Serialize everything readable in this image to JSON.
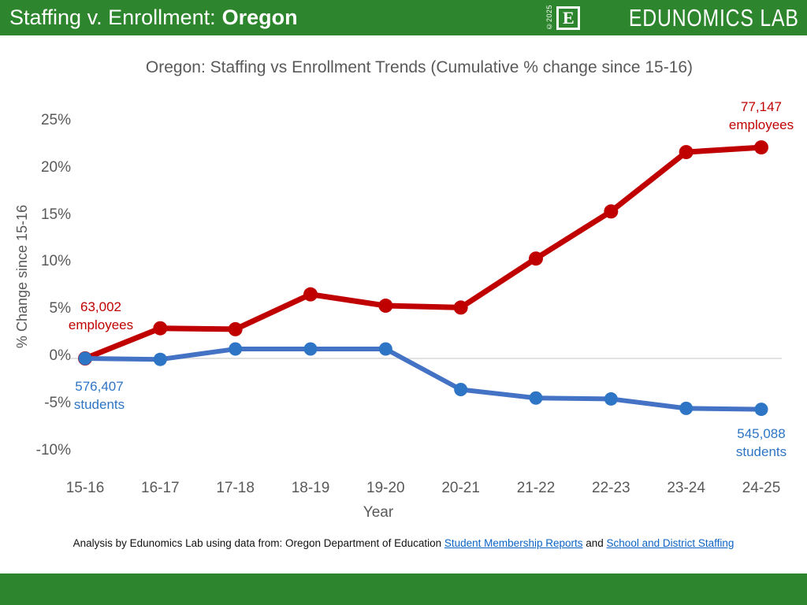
{
  "header": {
    "title_prefix": "Staffing v. Enrollment:",
    "title_bold": "Oregon",
    "logo": {
      "copyright": "©2025",
      "mark_letter": "E",
      "wordmark": "EDUNOMICS LAB"
    }
  },
  "chart_data": {
    "type": "line",
    "title": "Oregon: Staffing vs Enrollment Trends (Cumulative % change since 15-16)",
    "xlabel": "Year",
    "ylabel": "% Change since 15-16",
    "categories": [
      "15-16",
      "16-17",
      "17-18",
      "18-19",
      "19-20",
      "20-21",
      "21-22",
      "22-23",
      "23-24",
      "24-25"
    ],
    "series": [
      {
        "name": "employees",
        "color": "#c00000",
        "values": [
          0,
          3.2,
          3.1,
          6.8,
          5.6,
          5.4,
          10.6,
          15.6,
          21.9,
          22.4
        ],
        "start_count": "63,002",
        "end_count": "77,147"
      },
      {
        "name": "students",
        "color": "#4472c4",
        "marker_color": "#2e75c6",
        "values": [
          0,
          -0.1,
          1.0,
          1.0,
          1.0,
          -3.3,
          -4.2,
          -4.3,
          -5.3,
          -5.4
        ],
        "start_count": "576,407",
        "end_count": "545,088"
      }
    ],
    "yticks": [
      25,
      20,
      15,
      10,
      5,
      0,
      -5,
      -10
    ],
    "ytick_labels": [
      "25%",
      "20%",
      "15%",
      "10%",
      "5%",
      "0%",
      "-5%",
      "-10%"
    ],
    "ylim": [
      -12,
      27
    ],
    "gridlines": "zero-line-only",
    "legend": "none"
  },
  "annotations": {
    "employees_start": {
      "value": "63,002",
      "label": "employees"
    },
    "employees_end": {
      "value": "77,147",
      "label": "employees"
    },
    "students_start": {
      "value": "576,407",
      "label": "students"
    },
    "students_end": {
      "value": "545,088",
      "label": "students"
    }
  },
  "footer": {
    "prefix": "Analysis by Edunomics Lab using data from: Oregon Department of Education",
    "link1": "Student Membership Reports",
    "middle": "and",
    "link2": "School and District Staffing"
  },
  "colors": {
    "header_green": "#2d862d",
    "employees_red": "#c00000",
    "students_blue": "#4472c4",
    "students_marker_blue": "#2e75c6",
    "text_gray": "#595959",
    "gridline": "#d9d9d9",
    "link_blue": "#0b63c5"
  }
}
